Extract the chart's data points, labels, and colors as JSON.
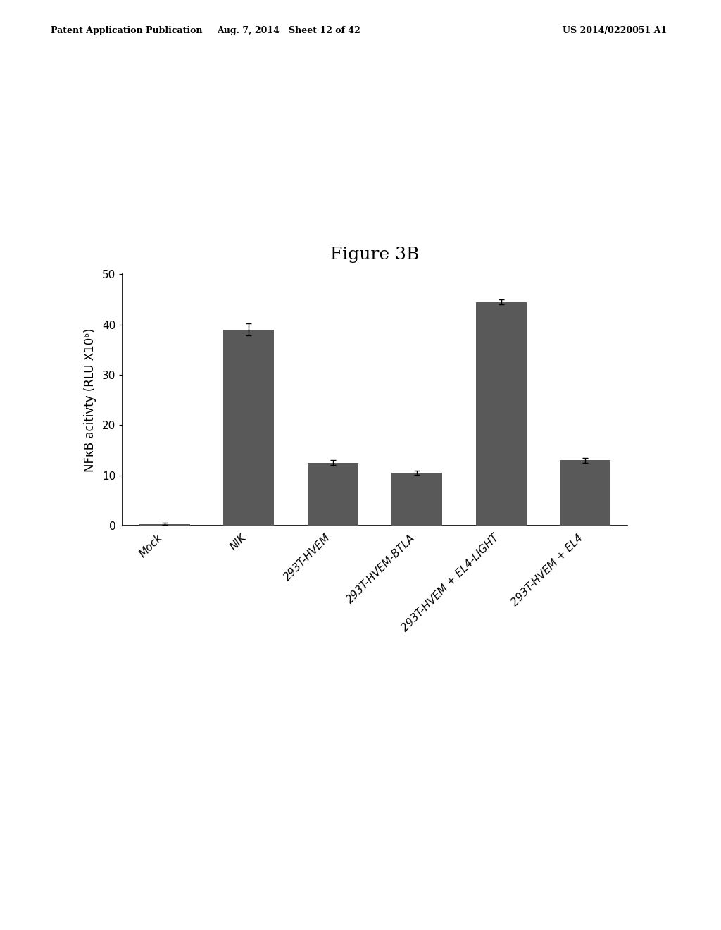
{
  "title": "Figure 3B",
  "categories": [
    "Mock",
    "NIK",
    "293T-HVEM",
    "293T-HVEM-BTLA",
    "293T-HVEM + EL4-LIGHT",
    "293T-HVEM + EL4"
  ],
  "values": [
    0.3,
    39.0,
    12.5,
    10.5,
    44.5,
    13.0
  ],
  "errors": [
    0.2,
    1.2,
    0.5,
    0.4,
    0.5,
    0.5
  ],
  "bar_color": "#595959",
  "ylabel": "NFκB acitivty (RLU X10⁶)",
  "ylim": [
    0,
    50
  ],
  "yticks": [
    0,
    10,
    20,
    30,
    40,
    50
  ],
  "background_color": "#ffffff",
  "title_fontsize": 18,
  "label_fontsize": 12,
  "tick_fontsize": 11,
  "header_left": "Patent Application Publication",
  "header_center": "Aug. 7, 2014   Sheet 12 of 42",
  "header_right": "US 2014/0220051 A1"
}
